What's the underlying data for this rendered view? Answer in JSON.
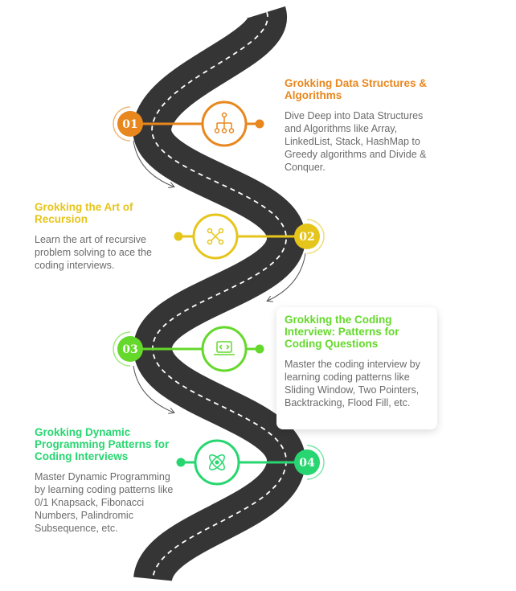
{
  "colors": {
    "road": "#363536",
    "road_dash": "#ffffff",
    "step1": "#e8871e",
    "step2": "#e6c51b",
    "step3": "#64d92b",
    "step4": "#27d670",
    "body_text": "#6b6b6b"
  },
  "steps": [
    {
      "number": "01",
      "title": "Grokking Data Structures & Algorithms",
      "description": "Dive Deep into Data Structures and Algorithms like Array, LinkedList, Stack, HashMap to Greedy algorithms and Divide & Conquer.",
      "icon": "hierarchy-tree-icon",
      "color": "#e8871e"
    },
    {
      "number": "02",
      "title": "Grokking the Art of Recursion",
      "description": "Learn the art of recursive problem solving to ace the coding interviews.",
      "icon": "recursion-nodes-icon",
      "color": "#e6c51b"
    },
    {
      "number": "03",
      "title": "Grokking the Coding Interview: Patterns for Coding Questions",
      "description": "Master the coding interview by learning coding patterns like Sliding Window, Two Pointers, Backtracking, Flood Fill, etc.",
      "icon": "laptop-code-icon",
      "color": "#64d92b"
    },
    {
      "number": "04",
      "title": "Grokking Dynamic Programming Patterns for Coding Interviews",
      "description": "Master Dynamic Programming by learning coding patterns like 0/1 Knapsack, Fibonacci Numbers, Palindromic Subsequence, etc.",
      "icon": "atom-icon",
      "color": "#27d670"
    }
  ]
}
